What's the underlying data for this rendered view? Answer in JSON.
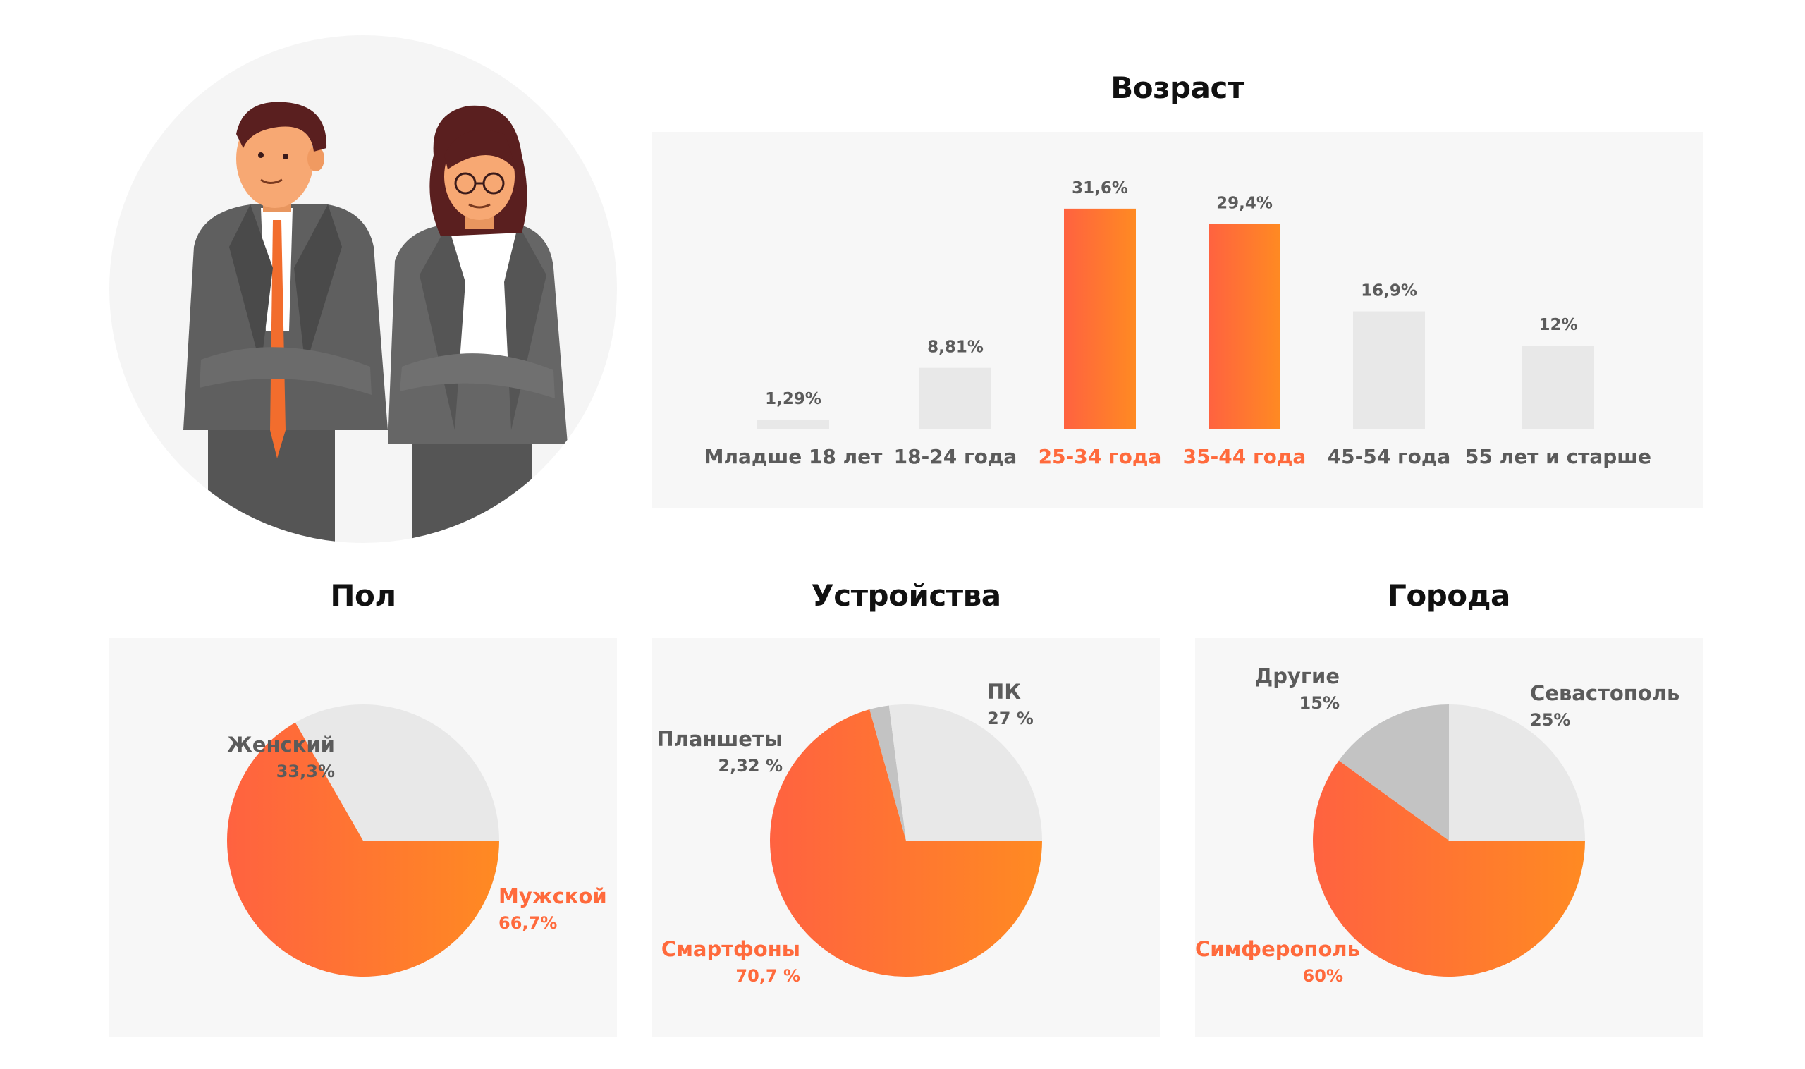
{
  "titles": {
    "age": "Возраст",
    "gender": "Пол",
    "devices": "Устройства",
    "cities": "Города"
  },
  "colors": {
    "accent_start": "#ff6240",
    "accent_end": "#ff8a22",
    "bar_grey": "#e8e8e8",
    "slice_light": "#e8e8e8",
    "slice_dark": "#c3c3c3",
    "text_grey": "#5b5b5b",
    "text_accent": "#ff6a3c",
    "panel_bg": "#f7f7f7"
  },
  "illustration": "two-business-people-icon",
  "chart_data": [
    {
      "type": "bar",
      "title": "Возраст",
      "categories": [
        "Младше 18 лет",
        "18-24 года",
        "25-34 года",
        "35-44 года",
        "45-54 года",
        "55 лет и старше"
      ],
      "values": [
        1.29,
        8.81,
        31.6,
        29.4,
        16.9,
        12
      ],
      "value_labels": [
        "1,29%",
        "8,81%",
        "31,6%",
        "29,4%",
        "16,9%",
        "12%"
      ],
      "highlighted": [
        false,
        false,
        true,
        true,
        false,
        false
      ],
      "ylim": [
        0,
        33
      ],
      "grid": false
    },
    {
      "type": "pie",
      "title": "Пол",
      "slices": [
        {
          "name": "Мужской",
          "value": 66.7,
          "label": "66,7%",
          "highlight": true,
          "color": "accent"
        },
        {
          "name": "Женский",
          "value": 33.3,
          "label": "33,3%",
          "highlight": false,
          "color": "light"
        }
      ]
    },
    {
      "type": "pie",
      "title": "Устройства",
      "slices": [
        {
          "name": "Смартфоны",
          "value": 70.7,
          "label": "70,7 %",
          "highlight": true,
          "color": "accent"
        },
        {
          "name": "Планшеты",
          "value": 2.32,
          "label": "2,32 %",
          "highlight": false,
          "color": "dark"
        },
        {
          "name": "ПК",
          "value": 27,
          "label": "27 %",
          "highlight": false,
          "color": "light"
        }
      ]
    },
    {
      "type": "pie",
      "title": "Города",
      "slices": [
        {
          "name": "Симферополь",
          "value": 60,
          "label": "60%",
          "highlight": true,
          "color": "accent"
        },
        {
          "name": "Другие",
          "value": 15,
          "label": "15%",
          "highlight": false,
          "color": "dark"
        },
        {
          "name": "Севастополь",
          "value": 25,
          "label": "25%",
          "highlight": false,
          "color": "light"
        }
      ]
    }
  ]
}
